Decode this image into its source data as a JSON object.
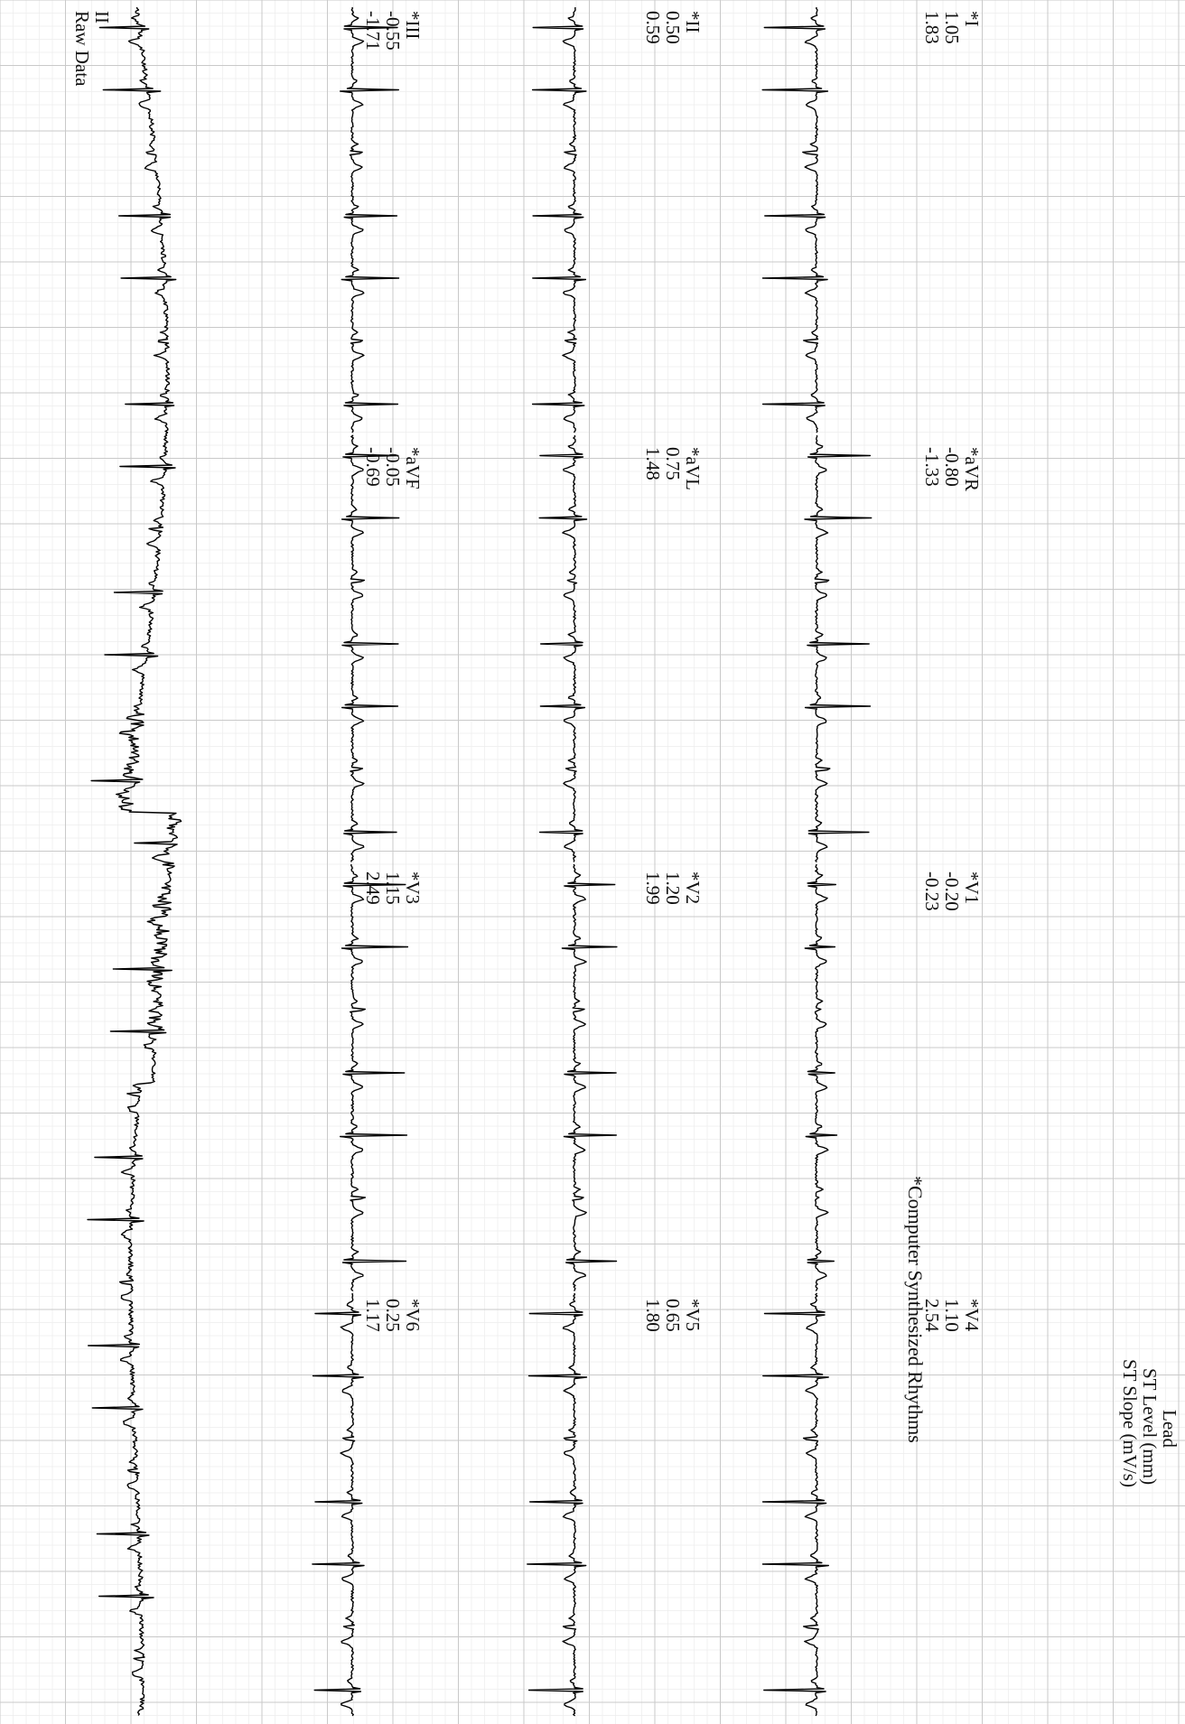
{
  "legend": {
    "lead": "Lead",
    "st_level": "ST Level (mm)",
    "st_slope": "ST Slope (mV/s)"
  },
  "leads": [
    {
      "name": "*I",
      "st_level": "1.05",
      "st_slope": "1.83"
    },
    {
      "name": "*aVR",
      "st_level": "-0.80",
      "st_slope": "-1.33"
    },
    {
      "name": "*V1",
      "st_level": "-0.20",
      "st_slope": "-0.23"
    },
    {
      "name": "*V4",
      "st_level": "1.10",
      "st_slope": "2.54"
    },
    {
      "name": "*II",
      "st_level": "0.50",
      "st_slope": "0.59"
    },
    {
      "name": "*aVL",
      "st_level": "0.75",
      "st_slope": "1.48"
    },
    {
      "name": "*V2",
      "st_level": "1.20",
      "st_slope": "1.99"
    },
    {
      "name": "*V5",
      "st_level": "0.65",
      "st_slope": "1.80"
    },
    {
      "name": "*III",
      "st_level": "-0.55",
      "st_slope": "-1.71"
    },
    {
      "name": "*aVF",
      "st_level": "-0.05",
      "st_slope": "-0.69"
    },
    {
      "name": "*V3",
      "st_level": "1.15",
      "st_slope": "2.49"
    },
    {
      "name": "*V6",
      "st_level": "0.25",
      "st_slope": "1.17"
    }
  ],
  "rhythm": {
    "lead": "II",
    "caption": "Raw Data"
  },
  "footnote": "*Computer Synthesized Rhythms",
  "colors": {
    "trace": "#000000",
    "grid": "#c9c9c9",
    "background": "#ffffff"
  }
}
